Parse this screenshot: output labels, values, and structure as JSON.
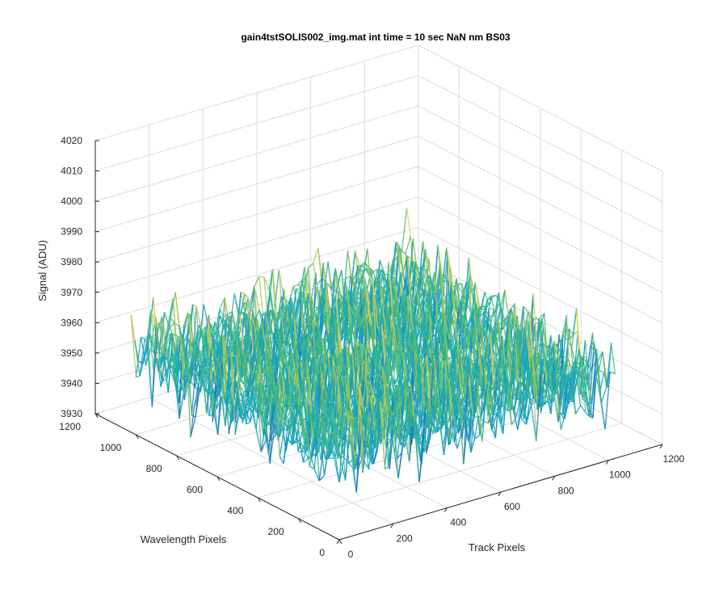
{
  "chart_data": {
    "type": "surface3d",
    "title": "gain4tstSOLIS002_img.mat int time = 10 sec  NaN nm BS03",
    "xlabel": "Track Pixels",
    "ylabel": "Wavelength Pixels",
    "zlabel": "Signal (ADU)",
    "x_ticks": [
      "0",
      "200",
      "400",
      "600",
      "800",
      "1000",
      "1200"
    ],
    "y_ticks": [
      "0",
      "200",
      "400",
      "600",
      "800",
      "1000",
      "1200"
    ],
    "z_ticks": [
      "3930",
      "3940",
      "3950",
      "3960",
      "3970",
      "3980",
      "3990",
      "4000",
      "4010",
      "4020"
    ],
    "xlim": [
      0,
      1200
    ],
    "ylim": [
      0,
      1200
    ],
    "zlim": [
      3930,
      4020
    ],
    "data_extent": {
      "x": [
        0,
        1024
      ],
      "y": [
        0,
        1024
      ]
    },
    "surface_mean": 3957,
    "surface_noise_sd": 7,
    "colormap": [
      "#1f77b4",
      "#0f96c8",
      "#1aa6b7",
      "#21b09d",
      "#55bb74",
      "#a8c85a",
      "#e3cf5e"
    ]
  }
}
